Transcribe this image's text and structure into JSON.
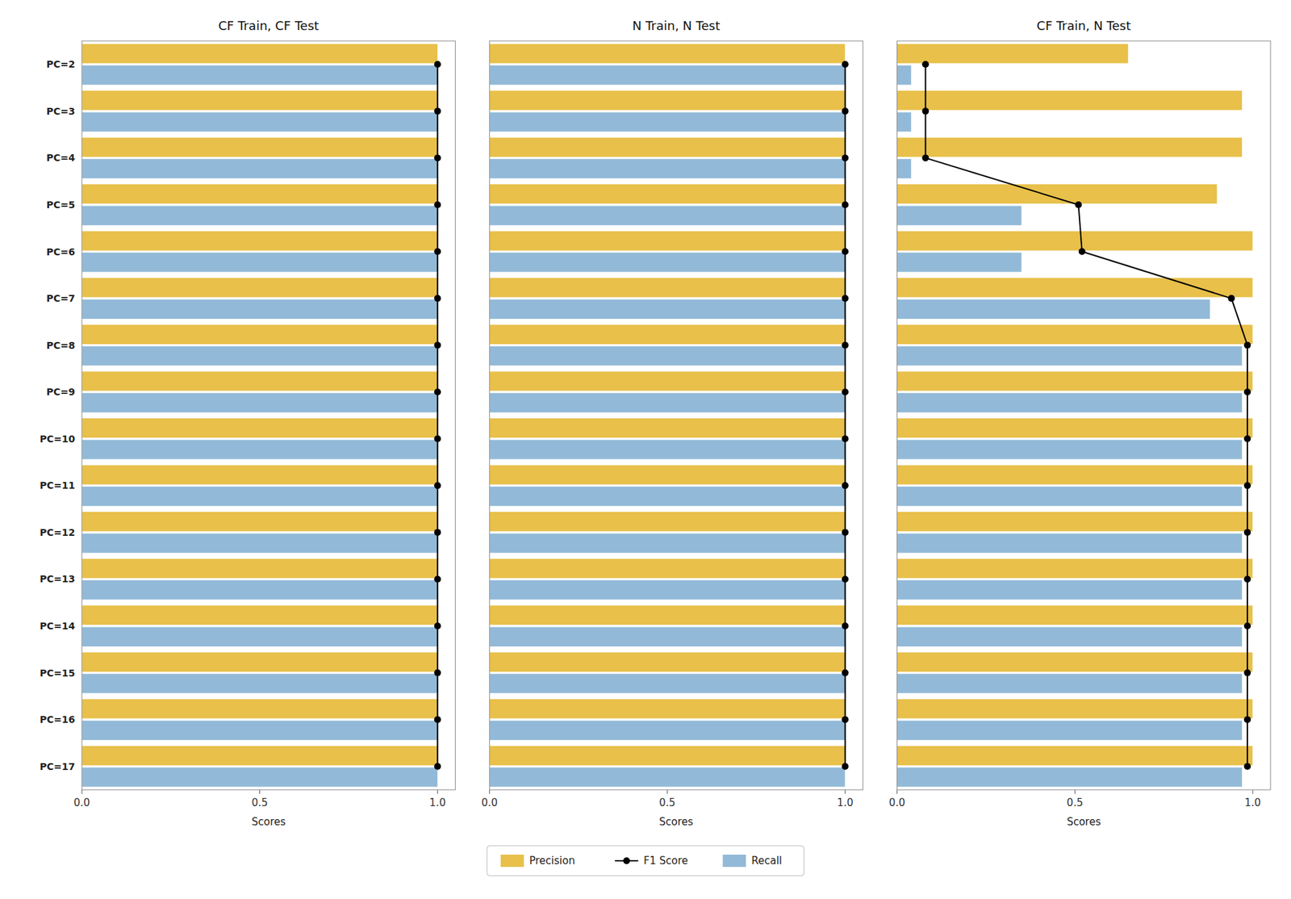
{
  "chart_data": [
    {
      "type": "bar",
      "orientation": "horizontal",
      "title": "CF Train, CF Test",
      "categories": [
        "PC=2",
        "PC=3",
        "PC=4",
        "PC=5",
        "PC=6",
        "PC=7",
        "PC=8",
        "PC=9",
        "PC=10",
        "PC=11",
        "PC=12",
        "PC=13",
        "PC=14",
        "PC=15",
        "PC=16",
        "PC=17"
      ],
      "series": [
        {
          "name": "Precision",
          "color": "#E8C04A",
          "values": [
            1.0,
            1.0,
            1.0,
            1.0,
            1.0,
            1.0,
            1.0,
            1.0,
            1.0,
            1.0,
            1.0,
            1.0,
            1.0,
            1.0,
            1.0,
            1.0
          ]
        },
        {
          "name": "F1 Score",
          "type": "line",
          "color": "black",
          "marker": "circle",
          "line_style": "solid",
          "values": [
            1.0,
            1.0,
            1.0,
            1.0,
            1.0,
            1.0,
            1.0,
            1.0,
            1.0,
            1.0,
            1.0,
            1.0,
            1.0,
            1.0,
            1.0,
            1.0
          ]
        },
        {
          "name": "Recall",
          "color": "#92BAD8",
          "values": [
            1.0,
            1.0,
            1.0,
            1.0,
            1.0,
            1.0,
            1.0,
            1.0,
            1.0,
            1.0,
            1.0,
            1.0,
            1.0,
            1.0,
            1.0,
            1.0
          ]
        }
      ],
      "xlabel": "Scores",
      "xlim": [
        0.0,
        1.05
      ],
      "xticks": [
        {
          "value": 0.0,
          "label": "0.0"
        },
        {
          "value": 0.5,
          "label": "0.5"
        },
        {
          "value": 1.0,
          "label": "1.0"
        }
      ],
      "grid": false,
      "legend": "bottom"
    },
    {
      "type": "bar",
      "orientation": "horizontal",
      "title": "N Train, N Test",
      "categories": [
        "PC=2",
        "PC=3",
        "PC=4",
        "PC=5",
        "PC=6",
        "PC=7",
        "PC=8",
        "PC=9",
        "PC=10",
        "PC=11",
        "PC=12",
        "PC=13",
        "PC=14",
        "PC=15",
        "PC=16",
        "PC=17"
      ],
      "series": [
        {
          "name": "Precision",
          "color": "#E8C04A",
          "values": [
            1.0,
            1.0,
            1.0,
            1.0,
            1.0,
            1.0,
            1.0,
            1.0,
            1.0,
            1.0,
            1.0,
            1.0,
            1.0,
            1.0,
            1.0,
            1.0
          ]
        },
        {
          "name": "F1 Score",
          "type": "line",
          "color": "black",
          "marker": "circle",
          "line_style": "solid",
          "values": [
            1.0,
            1.0,
            1.0,
            1.0,
            1.0,
            1.0,
            1.0,
            1.0,
            1.0,
            1.0,
            1.0,
            1.0,
            1.0,
            1.0,
            1.0,
            1.0
          ]
        },
        {
          "name": "Recall",
          "color": "#92BAD8",
          "values": [
            1.0,
            1.0,
            1.0,
            1.0,
            1.0,
            1.0,
            1.0,
            1.0,
            1.0,
            1.0,
            1.0,
            1.0,
            1.0,
            1.0,
            1.0,
            1.0
          ]
        }
      ],
      "xlabel": "Scores",
      "xlim": [
        0.0,
        1.05
      ],
      "xticks": [
        {
          "value": 0.0,
          "label": "0.0"
        },
        {
          "value": 0.5,
          "label": "0.5"
        },
        {
          "value": 1.0,
          "label": "1.0"
        }
      ],
      "grid": false,
      "tick_labels": "x"
    },
    {
      "type": "bar",
      "orientation": "horizontal",
      "title": "CF Train, N Test",
      "categories": [
        "PC=2",
        "PC=3",
        "PC=4",
        "PC=5",
        "PC=6",
        "PC=7",
        "PC=8",
        "PC=9",
        "PC=10",
        "PC=11",
        "PC=12",
        "PC=13",
        "PC=14",
        "PC=15",
        "PC=16",
        "PC=17"
      ],
      "series": [
        {
          "name": "Precision",
          "color": "#E8C04A",
          "values": [
            0.65,
            0.97,
            0.97,
            0.9,
            1.0,
            1.0,
            1.0,
            1.0,
            1.0,
            1.0,
            1.0,
            1.0,
            1.0,
            1.0,
            1.0,
            1.0
          ]
        },
        {
          "name": "F1 Score",
          "type": "line",
          "color": "black",
          "marker": "circle",
          "line_style": "solid",
          "values": [
            0.08,
            0.08,
            0.08,
            0.51,
            0.52,
            0.94,
            0.985,
            0.985,
            0.985,
            0.985,
            0.985,
            0.985,
            0.985,
            0.985,
            0.985,
            0.985
          ]
        },
        {
          "name": "Recall",
          "color": "#92BAD8",
          "values": [
            0.04,
            0.04,
            0.04,
            0.35,
            0.35,
            0.88,
            0.97,
            0.97,
            0.97,
            0.97,
            0.97,
            0.97,
            0.97,
            0.97,
            0.97,
            0.97
          ]
        }
      ],
      "xlabel": "Scores",
      "xlim": [
        0.0,
        1.05
      ],
      "xticks": [
        {
          "value": 0.0,
          "label": "0.0"
        },
        {
          "value": 0.5,
          "label": "0.5"
        },
        {
          "value": 1.0,
          "label": "1.0"
        }
      ],
      "grid": false,
      "tick_labels": "x"
    }
  ]
}
